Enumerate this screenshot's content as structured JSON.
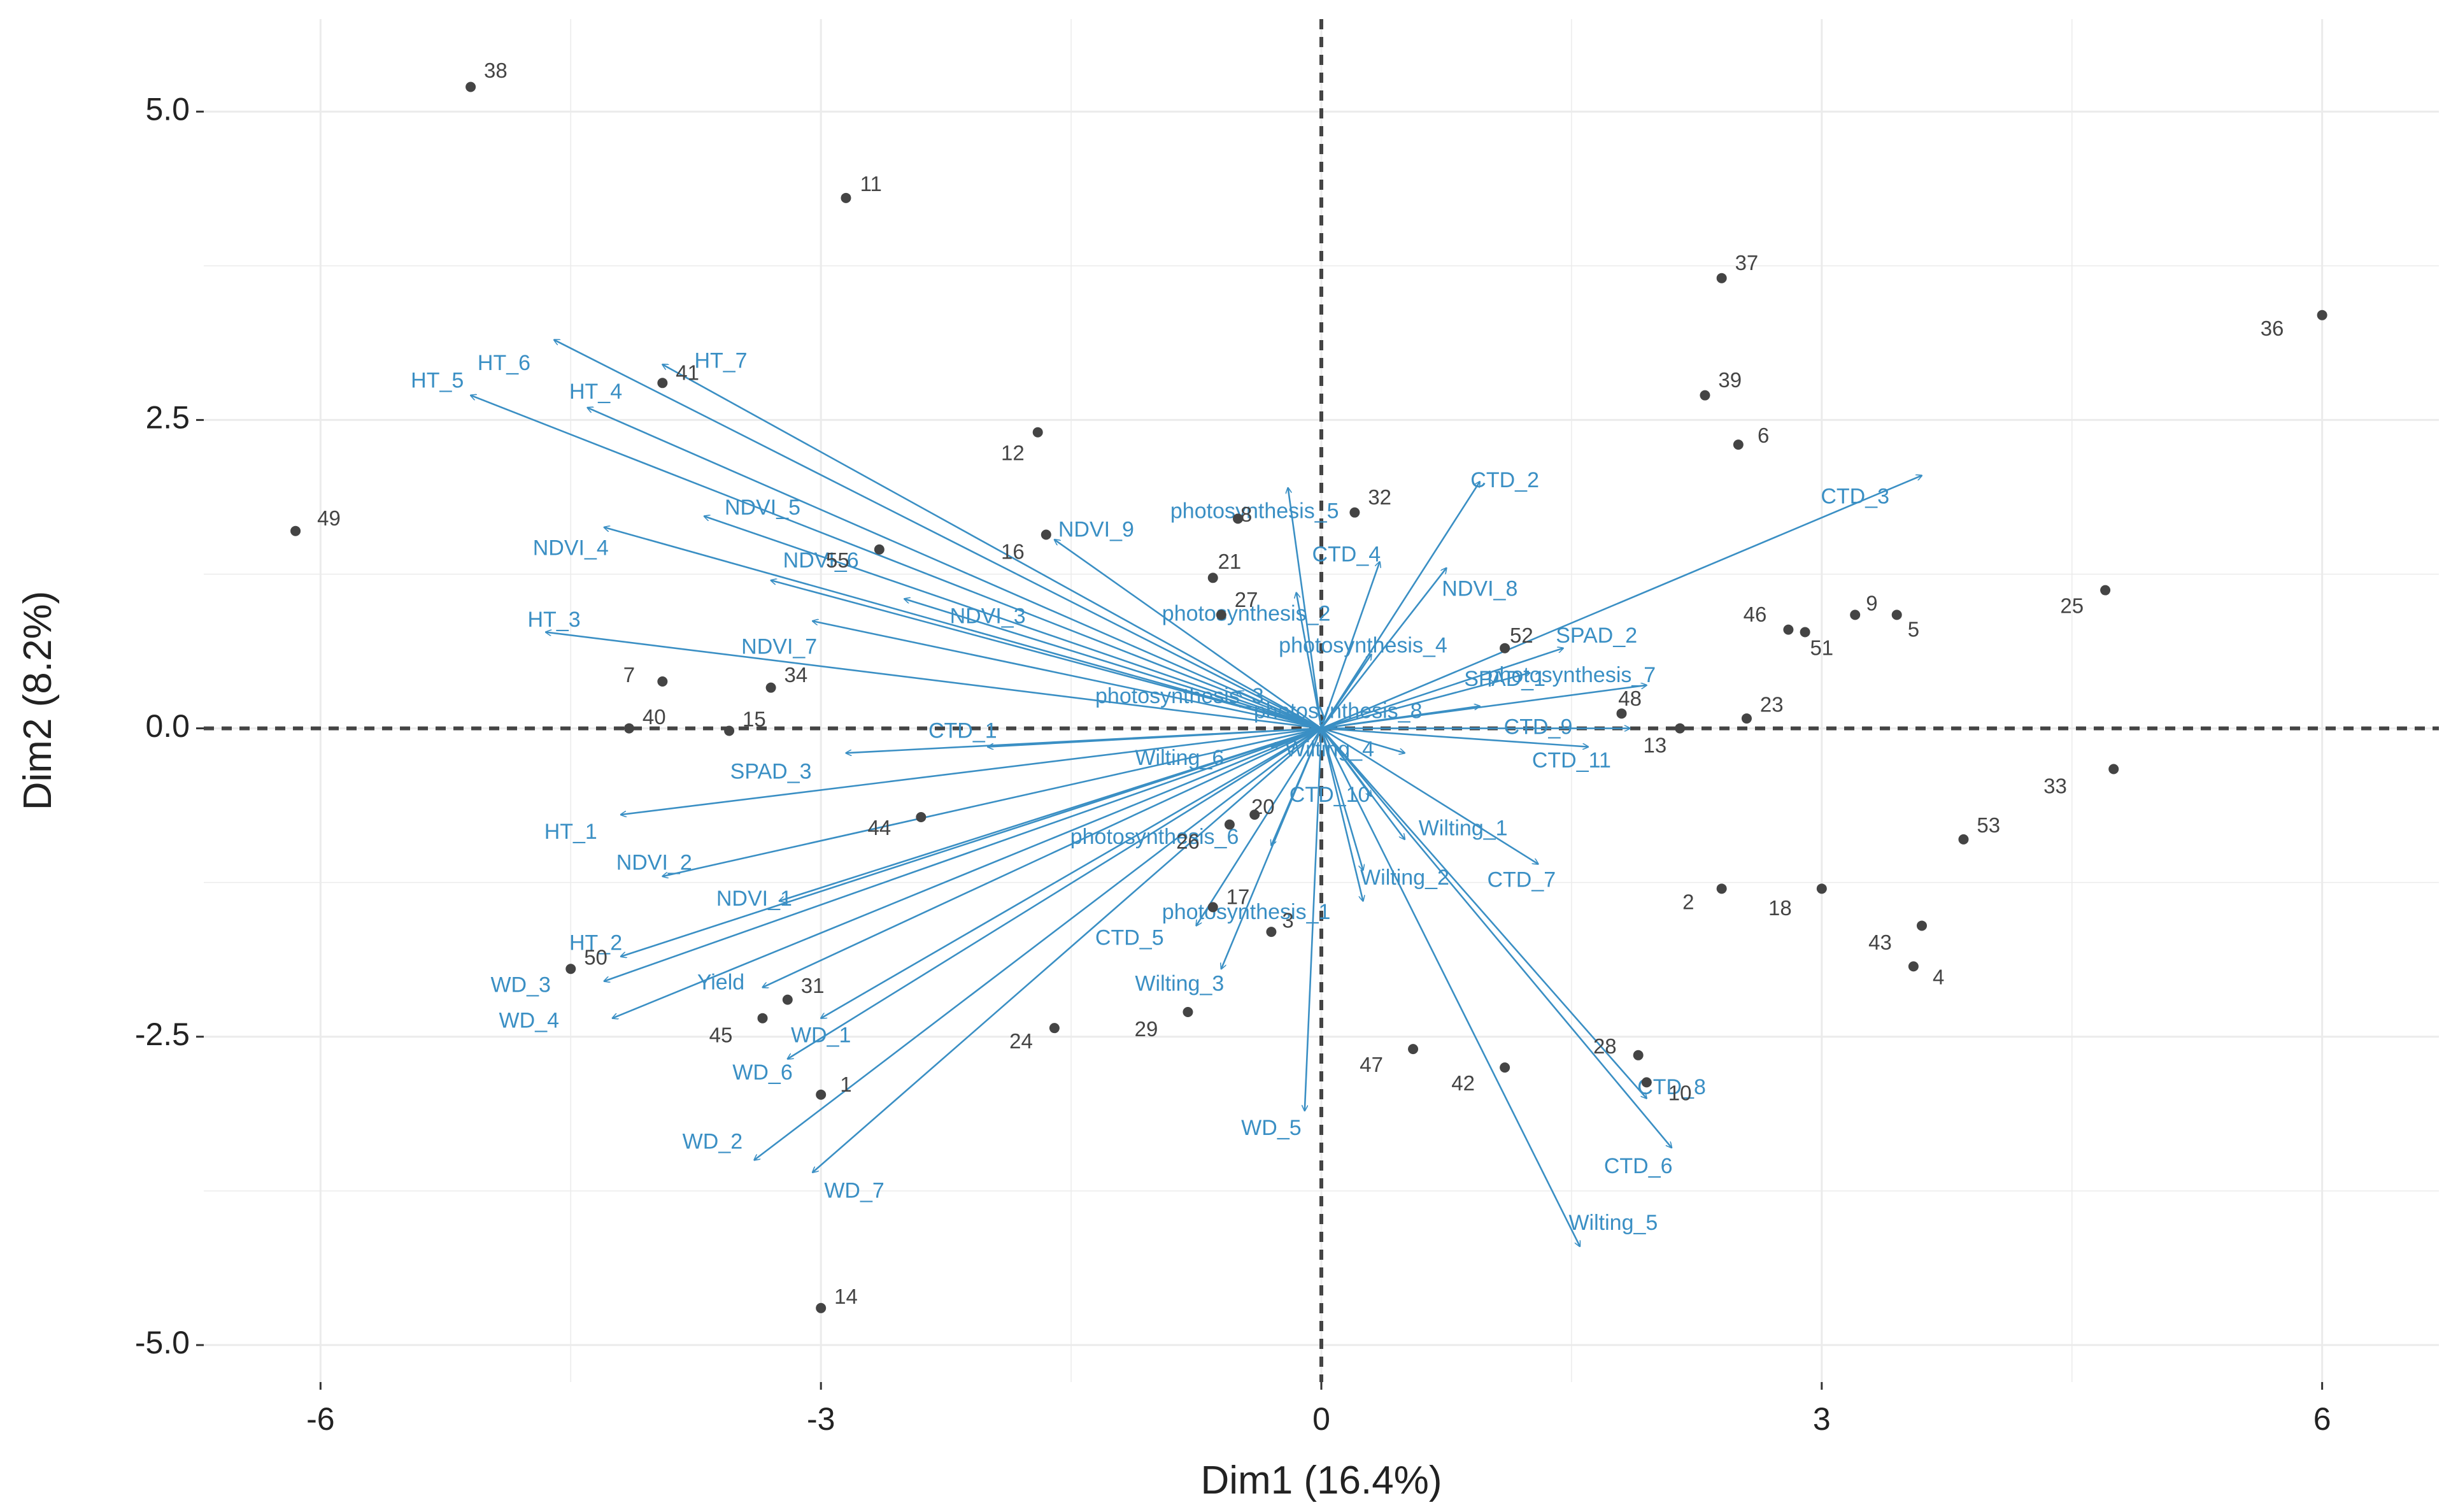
{
  "chart_data": {
    "type": "scatter",
    "subtype": "pca-biplot",
    "title": "",
    "xlabel": "Dim1 (16.4%)",
    "ylabel": "Dim2 (8.2%)",
    "xlim": [
      -6.7,
      6.7
    ],
    "ylim": [
      -5.3,
      5.75
    ],
    "xticks": [
      {
        "v": -6,
        "label": "-6"
      },
      {
        "v": -3,
        "label": "-3"
      },
      {
        "v": 0,
        "label": "0"
      },
      {
        "v": 3,
        "label": "3"
      },
      {
        "v": 6,
        "label": "6"
      }
    ],
    "yticks": [
      {
        "v": 5,
        "label": "5.0"
      },
      {
        "v": 2.5,
        "label": "2.5"
      },
      {
        "v": 0,
        "label": "0.0"
      },
      {
        "v": -2.5,
        "label": "-2.5"
      },
      {
        "v": -5,
        "label": "-5.0"
      }
    ],
    "grid": true,
    "colors": {
      "variables": "#3a8fc4",
      "individuals": "#444444",
      "reference_line": "#444444",
      "grid": "#ebebeb"
    },
    "variables": [
      {
        "name": "HT_6",
        "x": -4.6,
        "y": 3.15,
        "label": "HT_6",
        "lx": -4.9,
        "ly": 2.95
      },
      {
        "name": "HT_7",
        "x": -3.95,
        "y": 2.95,
        "label": "HT_7",
        "lx": -3.6,
        "ly": 2.97
      },
      {
        "name": "HT_5",
        "x": -5.1,
        "y": 2.7,
        "label": "HT_5",
        "lx": -5.3,
        "ly": 2.81
      },
      {
        "name": "HT_4",
        "x": -4.4,
        "y": 2.6,
        "label": "HT_4",
        "lx": -4.35,
        "ly": 2.72
      },
      {
        "name": "NDVI_5",
        "x": -3.7,
        "y": 1.72,
        "label": "NDVI_5",
        "lx": -3.35,
        "ly": 1.78
      },
      {
        "name": "NDVI_4",
        "x": -4.3,
        "y": 1.63,
        "label": "NDVI_4",
        "lx": -4.5,
        "ly": 1.45
      },
      {
        "name": "NDVI_6",
        "x": -3.3,
        "y": 1.2,
        "label": "NDVI_6",
        "lx": -3.0,
        "ly": 1.35
      },
      {
        "name": "NDVI_3",
        "x": -2.5,
        "y": 1.05,
        "label": "NDVI_3",
        "lx": -2.0,
        "ly": 0.9
      },
      {
        "name": "NDVI_7",
        "x": -3.05,
        "y": 0.87,
        "label": "NDVI_7",
        "lx": -3.25,
        "ly": 0.65
      },
      {
        "name": "HT_3",
        "x": -4.65,
        "y": 0.78,
        "label": "HT_3",
        "lx": -4.6,
        "ly": 0.87
      },
      {
        "name": "NDVI_9",
        "x": -1.6,
        "y": 1.53,
        "label": "NDVI_9",
        "lx": -1.35,
        "ly": 1.6
      },
      {
        "name": "photosynthesis_5",
        "x": -0.2,
        "y": 1.95,
        "label": "photosynthesis_5",
        "lx": -0.4,
        "ly": 1.75
      },
      {
        "name": "photosynthesis_2",
        "x": -0.15,
        "y": 1.1,
        "label": "photosynthesis_2",
        "lx": -0.45,
        "ly": 0.92
      },
      {
        "name": "photosynthesis_3",
        "x": -0.5,
        "y": 0.3,
        "label": "photosynthesis_3",
        "lx": -0.85,
        "ly": 0.25
      },
      {
        "name": "photosynthesis_4",
        "x": 0.3,
        "y": 0.6,
        "label": "photosynthesis_4",
        "lx": 0.25,
        "ly": 0.66
      },
      {
        "name": "CTD_4",
        "x": 0.35,
        "y": 1.35,
        "label": "CTD_4",
        "lx": 0.15,
        "ly": 1.4
      },
      {
        "name": "CTD_2",
        "x": 0.95,
        "y": 2.0,
        "label": "CTD_2",
        "lx": 1.1,
        "ly": 2.0
      },
      {
        "name": "NDVI_8",
        "x": 0.75,
        "y": 1.3,
        "label": "NDVI_8",
        "lx": 0.95,
        "ly": 1.12
      },
      {
        "name": "CTD_3",
        "x": 3.6,
        "y": 2.05,
        "label": "CTD_3",
        "lx": 3.2,
        "ly": 1.87
      },
      {
        "name": "SPAD_2",
        "x": 1.45,
        "y": 0.65,
        "label": "SPAD_2",
        "lx": 1.65,
        "ly": 0.74
      },
      {
        "name": "SPAD_1",
        "x": 1.25,
        "y": 0.45,
        "label": "SPAD_1",
        "lx": 1.1,
        "ly": 0.39
      },
      {
        "name": "photosynthesis_7",
        "x": 1.95,
        "y": 0.35,
        "label": "photosynthesis_7",
        "lx": 1.5,
        "ly": 0.42
      },
      {
        "name": "photosynthesis_8",
        "x": 0.95,
        "y": 0.18,
        "label": "photosynthesis_8",
        "lx": 0.1,
        "ly": 0.13
      },
      {
        "name": "CTD_9",
        "x": 1.85,
        "y": 0.0,
        "label": "CTD_9",
        "lx": 1.3,
        "ly": 0.0
      },
      {
        "name": "CTD_11",
        "x": 1.6,
        "y": -0.15,
        "label": "CTD_11",
        "lx": 1.5,
        "ly": -0.27
      },
      {
        "name": "CTD_1",
        "x": -2.0,
        "y": -0.15,
        "label": "CTD_1",
        "lx": -2.15,
        "ly": -0.03
      },
      {
        "name": "SPAD_3",
        "x": -2.85,
        "y": -0.2,
        "label": "SPAD_3",
        "lx": -3.3,
        "ly": -0.36
      },
      {
        "name": "Wilting_4",
        "x": 0.5,
        "y": -0.2,
        "label": "Wilting_4",
        "lx": 0.05,
        "ly": -0.18
      },
      {
        "name": "Wilting_6",
        "x": -0.3,
        "y": -0.15,
        "label": "Wilting_6",
        "lx": -0.85,
        "ly": -0.25
      },
      {
        "name": "HT_1",
        "x": -4.2,
        "y": -0.7,
        "label": "HT_1",
        "lx": -4.5,
        "ly": -0.85
      },
      {
        "name": "CTD_10",
        "x": 0.3,
        "y": -0.55,
        "label": "CTD_10",
        "lx": 0.05,
        "ly": -0.55
      },
      {
        "name": "Wilting_1",
        "x": 0.5,
        "y": -0.9,
        "label": "Wilting_1",
        "lx": 0.85,
        "ly": -0.82
      },
      {
        "name": "photosynthesis_6",
        "x": -0.3,
        "y": -0.95,
        "label": "photosynthesis_6",
        "lx": -1.0,
        "ly": -0.89
      },
      {
        "name": "NDVI_2",
        "x": -3.95,
        "y": -1.2,
        "label": "NDVI_2",
        "lx": -4.0,
        "ly": -1.1
      },
      {
        "name": "Wilting_2",
        "x": 0.25,
        "y": -1.15,
        "label": "Wilting_2",
        "lx": 0.5,
        "ly": -1.22
      },
      {
        "name": "CTD_7",
        "x": 1.3,
        "y": -1.1,
        "label": "CTD_7",
        "lx": 1.2,
        "ly": -1.24
      },
      {
        "name": "NDVI_1",
        "x": -3.25,
        "y": -1.4,
        "label": "NDVI_1",
        "lx": -3.4,
        "ly": -1.39
      },
      {
        "name": "photosynthesis_1",
        "x": 0.25,
        "y": -1.4,
        "label": "photosynthesis_1",
        "lx": -0.45,
        "ly": -1.5
      },
      {
        "name": "CTD_5",
        "x": -0.75,
        "y": -1.6,
        "label": "CTD_5",
        "lx": -1.15,
        "ly": -1.71
      },
      {
        "name": "HT_2",
        "x": -4.2,
        "y": -1.85,
        "label": "HT_2",
        "lx": -4.35,
        "ly": -1.75
      },
      {
        "name": "WD_3",
        "x": -4.3,
        "y": -2.05,
        "label": "WD_3",
        "lx": -4.8,
        "ly": -2.09
      },
      {
        "name": "Yield",
        "x": -3.35,
        "y": -2.1,
        "label": "Yield",
        "lx": -3.6,
        "ly": -2.07
      },
      {
        "name": "WD_4",
        "x": -4.25,
        "y": -2.35,
        "label": "WD_4",
        "lx": -4.75,
        "ly": -2.38
      },
      {
        "name": "WD_1",
        "x": -3.0,
        "y": -2.35,
        "label": "WD_1",
        "lx": -3.0,
        "ly": -2.5
      },
      {
        "name": "WD_6",
        "x": -3.2,
        "y": -2.68,
        "label": "WD_6",
        "lx": -3.35,
        "ly": -2.8
      },
      {
        "name": "Wilting_3",
        "x": -0.6,
        "y": -1.95,
        "label": "Wilting_3",
        "lx": -0.85,
        "ly": -2.08
      },
      {
        "name": "WD_2",
        "x": -3.4,
        "y": -3.5,
        "label": "WD_2",
        "lx": -3.65,
        "ly": -3.36
      },
      {
        "name": "WD_7",
        "x": -3.05,
        "y": -3.6,
        "label": "WD_7",
        "lx": -2.8,
        "ly": -3.76
      },
      {
        "name": "WD_5",
        "x": -0.1,
        "y": -3.1,
        "label": "WD_5",
        "lx": -0.3,
        "ly": -3.25
      },
      {
        "name": "CTD_8",
        "x": 1.95,
        "y": -3.0,
        "label": "CTD_8",
        "lx": 2.1,
        "ly": -2.92
      },
      {
        "name": "CTD_6",
        "x": 2.1,
        "y": -3.4,
        "label": "CTD_6",
        "lx": 1.9,
        "ly": -3.56
      },
      {
        "name": "Wilting_5",
        "x": 1.55,
        "y": -4.2,
        "label": "Wilting_5",
        "lx": 1.75,
        "ly": -4.02
      }
    ],
    "individuals": [
      {
        "label": "38",
        "x": -5.1,
        "y": 5.2,
        "lx": -4.95,
        "ly": 5.32
      },
      {
        "label": "11",
        "x": -2.85,
        "y": 4.3,
        "lx": -2.7,
        "ly": 4.4
      },
      {
        "label": "37",
        "x": 2.4,
        "y": 3.65,
        "lx": 2.55,
        "ly": 3.76
      },
      {
        "label": "36",
        "x": 6.0,
        "y": 3.35,
        "lx": 5.7,
        "ly": 3.23
      },
      {
        "label": "41",
        "x": -3.95,
        "y": 2.8,
        "lx": -3.8,
        "ly": 2.87
      },
      {
        "label": "39",
        "x": 2.3,
        "y": 2.7,
        "lx": 2.45,
        "ly": 2.81
      },
      {
        "label": "12",
        "x": -1.7,
        "y": 2.4,
        "lx": -1.85,
        "ly": 2.22
      },
      {
        "label": "6",
        "x": 2.5,
        "y": 2.3,
        "lx": 2.65,
        "ly": 2.36
      },
      {
        "label": "49",
        "x": -6.15,
        "y": 1.6,
        "lx": -5.95,
        "ly": 1.69
      },
      {
        "label": "32",
        "x": 0.2,
        "y": 1.75,
        "lx": 0.35,
        "ly": 1.86
      },
      {
        "label": "8",
        "x": -0.5,
        "y": 1.7,
        "lx": -0.45,
        "ly": 1.72
      },
      {
        "label": "55",
        "x": -2.65,
        "y": 1.45,
        "lx": -2.9,
        "ly": 1.35
      },
      {
        "label": "16",
        "x": -1.65,
        "y": 1.57,
        "lx": -1.85,
        "ly": 1.42
      },
      {
        "label": "21",
        "x": -0.65,
        "y": 1.22,
        "lx": -0.55,
        "ly": 1.34
      },
      {
        "label": "27",
        "x": -0.6,
        "y": 0.92,
        "lx": -0.45,
        "ly": 1.03
      },
      {
        "label": "25",
        "x": 4.7,
        "y": 1.12,
        "lx": 4.5,
        "ly": 0.98
      },
      {
        "label": "46",
        "x": 2.8,
        "y": 0.8,
        "lx": 2.6,
        "ly": 0.91
      },
      {
        "label": "9",
        "x": 3.2,
        "y": 0.92,
        "lx": 3.3,
        "ly": 1.0
      },
      {
        "label": "5",
        "x": 3.45,
        "y": 0.92,
        "lx": 3.55,
        "ly": 0.79
      },
      {
        "label": "51",
        "x": 2.9,
        "y": 0.78,
        "lx": 3.0,
        "ly": 0.64
      },
      {
        "label": "52",
        "x": 1.1,
        "y": 0.65,
        "lx": 1.2,
        "ly": 0.74
      },
      {
        "label": "7",
        "x": -3.95,
        "y": 0.38,
        "lx": -4.15,
        "ly": 0.42
      },
      {
        "label": "34",
        "x": -3.3,
        "y": 0.33,
        "lx": -3.15,
        "ly": 0.42
      },
      {
        "label": "48",
        "x": 1.8,
        "y": 0.12,
        "lx": 1.85,
        "ly": 0.23
      },
      {
        "label": "23",
        "x": 2.55,
        "y": 0.08,
        "lx": 2.7,
        "ly": 0.18
      },
      {
        "label": "13",
        "x": 2.15,
        "y": 0.0,
        "lx": 2.0,
        "ly": -0.15
      },
      {
        "label": "40",
        "x": -4.15,
        "y": 0.0,
        "lx": -4.0,
        "ly": 0.08
      },
      {
        "label": "15",
        "x": -3.55,
        "y": -0.02,
        "lx": -3.4,
        "ly": 0.06
      },
      {
        "label": "33",
        "x": 4.75,
        "y": -0.33,
        "lx": 4.4,
        "ly": -0.48
      },
      {
        "label": "53",
        "x": 3.85,
        "y": -0.9,
        "lx": 4.0,
        "ly": -0.8
      },
      {
        "label": "44",
        "x": -2.4,
        "y": -0.72,
        "lx": -2.65,
        "ly": -0.82
      },
      {
        "label": "20",
        "x": -0.4,
        "y": -0.7,
        "lx": -0.35,
        "ly": -0.65
      },
      {
        "label": "26",
        "x": -0.55,
        "y": -0.78,
        "lx": -0.8,
        "ly": -0.93
      },
      {
        "label": "2",
        "x": 2.4,
        "y": -1.3,
        "lx": 2.2,
        "ly": -1.42
      },
      {
        "label": "18",
        "x": 3.0,
        "y": -1.3,
        "lx": 2.75,
        "ly": -1.47
      },
      {
        "label": "17",
        "x": -0.65,
        "y": -1.45,
        "lx": -0.5,
        "ly": -1.38
      },
      {
        "label": "3",
        "x": -0.3,
        "y": -1.65,
        "lx": -0.2,
        "ly": -1.57
      },
      {
        "label": "43",
        "x": 3.6,
        "y": -1.6,
        "lx": 3.35,
        "ly": -1.75
      },
      {
        "label": "4",
        "x": 3.55,
        "y": -1.93,
        "lx": 3.7,
        "ly": -2.03
      },
      {
        "label": "50",
        "x": -4.5,
        "y": -1.95,
        "lx": -4.35,
        "ly": -1.87
      },
      {
        "label": "31",
        "x": -3.2,
        "y": -2.2,
        "lx": -3.05,
        "ly": -2.1
      },
      {
        "label": "45",
        "x": -3.35,
        "y": -2.35,
        "lx": -3.6,
        "ly": -2.5
      },
      {
        "label": "29",
        "x": -0.8,
        "y": -2.3,
        "lx": -1.05,
        "ly": -2.45
      },
      {
        "label": "24",
        "x": -1.6,
        "y": -2.43,
        "lx": -1.8,
        "ly": -2.55
      },
      {
        "label": "47",
        "x": 0.55,
        "y": -2.6,
        "lx": 0.3,
        "ly": -2.74
      },
      {
        "label": "28",
        "x": 1.9,
        "y": -2.65,
        "lx": 1.7,
        "ly": -2.59
      },
      {
        "label": "42",
        "x": 1.1,
        "y": -2.75,
        "lx": 0.85,
        "ly": -2.89
      },
      {
        "label": "10",
        "x": 1.95,
        "y": -2.87,
        "lx": 2.15,
        "ly": -2.97
      },
      {
        "label": "1",
        "x": -3.0,
        "y": -2.97,
        "lx": -2.85,
        "ly": -2.9
      },
      {
        "label": "14",
        "x": -3.0,
        "y": -4.7,
        "lx": -2.85,
        "ly": -4.62
      }
    ]
  }
}
